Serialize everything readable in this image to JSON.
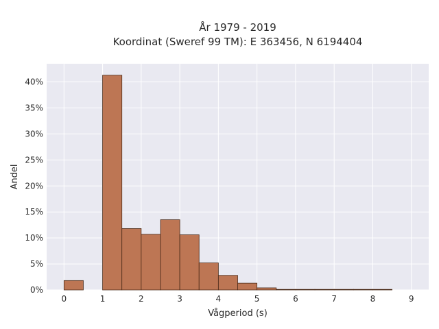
{
  "chart_data": {
    "type": "bar",
    "title_line1": "År 1979 - 2019",
    "title_line2": "Koordinat (Sweref 99 TM): E 363456, N 6194404",
    "xlabel": "Vågperiod (s)",
    "ylabel": "Andel",
    "xlim": [
      -0.45,
      9.45
    ],
    "ylim": [
      0,
      43.5
    ],
    "x_ticks": [
      0,
      1,
      2,
      3,
      4,
      5,
      6,
      7,
      8,
      9
    ],
    "y_ticks": [
      0,
      5,
      10,
      15,
      20,
      25,
      30,
      35,
      40
    ],
    "y_tick_labels": [
      "0%",
      "5%",
      "10%",
      "15%",
      "20%",
      "25%",
      "30%",
      "35%",
      "40%"
    ],
    "bins": [
      {
        "start": 0.0,
        "end": 0.5,
        "value": 1.8
      },
      {
        "start": 0.5,
        "end": 1.0,
        "value": 0.0
      },
      {
        "start": 1.0,
        "end": 1.5,
        "value": 41.3
      },
      {
        "start": 1.5,
        "end": 2.0,
        "value": 11.8
      },
      {
        "start": 2.0,
        "end": 2.5,
        "value": 10.7
      },
      {
        "start": 2.5,
        "end": 3.0,
        "value": 13.5
      },
      {
        "start": 3.0,
        "end": 3.5,
        "value": 10.6
      },
      {
        "start": 3.5,
        "end": 4.0,
        "value": 5.2
      },
      {
        "start": 4.0,
        "end": 4.5,
        "value": 2.8
      },
      {
        "start": 4.5,
        "end": 5.0,
        "value": 1.3
      },
      {
        "start": 5.0,
        "end": 5.5,
        "value": 0.4
      },
      {
        "start": 5.5,
        "end": 6.0,
        "value": 0.1
      },
      {
        "start": 6.0,
        "end": 6.5,
        "value": 0.05
      },
      {
        "start": 6.5,
        "end": 7.0,
        "value": 0.05
      },
      {
        "start": 7.0,
        "end": 7.5,
        "value": 0.05
      },
      {
        "start": 7.5,
        "end": 8.0,
        "value": 0.05
      },
      {
        "start": 8.0,
        "end": 8.5,
        "value": 0.05
      }
    ],
    "bar_color": "#bd7654",
    "bar_edge_color": "#4a2a18",
    "plot_background": "#e9e9f1",
    "grid": true,
    "legend": "none"
  }
}
